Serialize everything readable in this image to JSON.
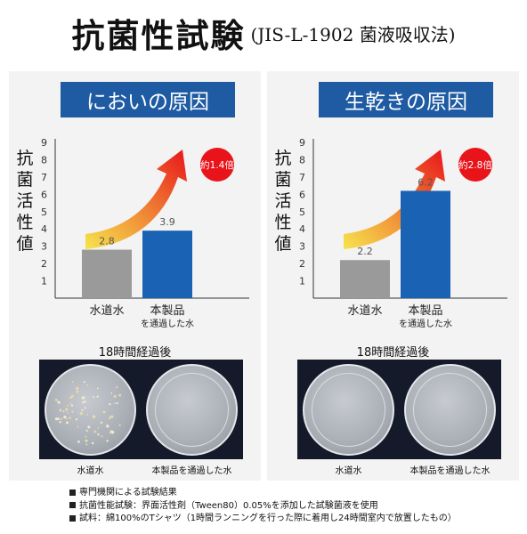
{
  "title": {
    "main": "抗菌性試験",
    "sub": "(JIS-L-1902 菌液吸収法)"
  },
  "chart_data": [
    {
      "type": "bar",
      "title": "においの原因",
      "ylabel": "抗菌活性値",
      "categories": [
        "水道水",
        "本製品"
      ],
      "category_sublabels": [
        "",
        "を通過した水"
      ],
      "values": [
        2.8,
        3.9
      ],
      "value_labels": [
        "2.8",
        "3.9"
      ],
      "ylim": [
        0,
        9
      ],
      "yticks": [
        "1",
        "2",
        "3",
        "4",
        "5",
        "6",
        "7",
        "8",
        "9"
      ],
      "bar_colors": [
        "#9a9a9a",
        "#1a63b4"
      ],
      "annotation": "約1.4倍"
    },
    {
      "type": "bar",
      "title": "生乾きの原因",
      "ylabel": "抗菌活性値",
      "categories": [
        "水道水",
        "本製品"
      ],
      "category_sublabels": [
        "",
        "を通過した水"
      ],
      "values": [
        2.2,
        6.2
      ],
      "value_labels": [
        "2.2",
        "6.2"
      ],
      "ylim": [
        0,
        9
      ],
      "yticks": [
        "1",
        "2",
        "3",
        "4",
        "5",
        "6",
        "7",
        "8",
        "9"
      ],
      "bar_colors": [
        "#9a9a9a",
        "#1a63b4"
      ],
      "annotation": "約2.8倍"
    }
  ],
  "dishes": {
    "caption": "18時間経過後",
    "labels": [
      "水道水",
      "本製品を通過した水"
    ]
  },
  "notes": [
    "専門機関による試験結果",
    "抗菌性能試験：界面活性剤（Tween80）0.05%を添加した試験菌液を使用",
    "試料：綿100%のTシャツ（1時間ランニングを行った際に着用し24時間室内で放置したもの）"
  ],
  "colors": {
    "banner": "#1e5ba3",
    "badge": "#e8141a",
    "arrow_start": "#f7e23a",
    "arrow_end": "#e8141a"
  }
}
